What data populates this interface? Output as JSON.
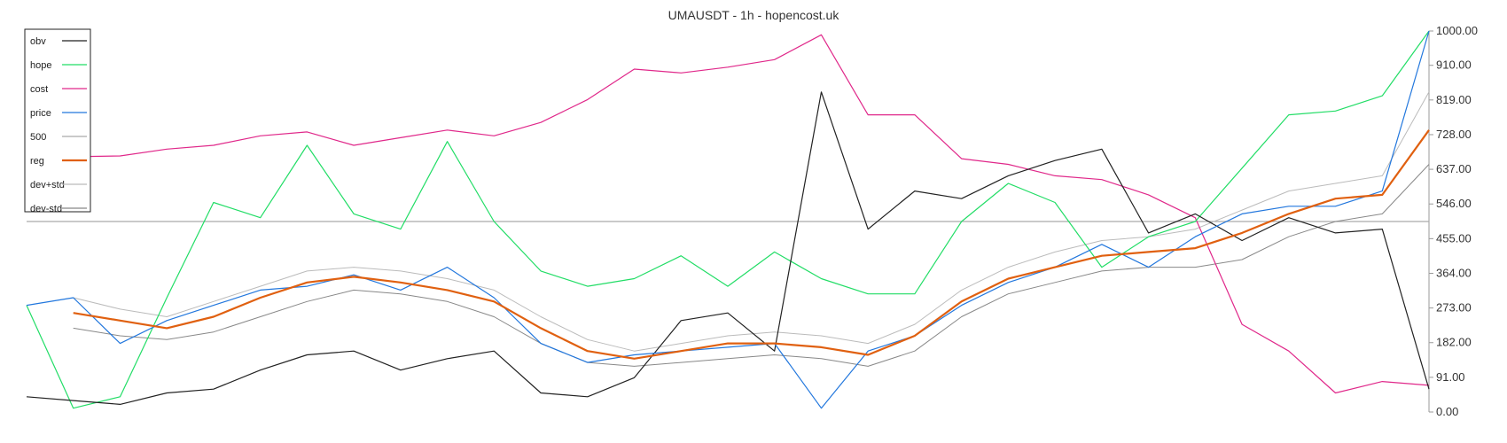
{
  "chart_data": {
    "type": "line",
    "title": "UMAUSDT - 1h - hopencost.uk",
    "xlabel": "",
    "ylabel": "",
    "ylim": [
      0,
      1000
    ],
    "yticks": [
      "0.00",
      "91.00",
      "182.00",
      "273.00",
      "364.00",
      "455.00",
      "546.00",
      "637.00",
      "728.00",
      "819.00",
      "910.00",
      "1000.00"
    ],
    "legend_position": "top-left",
    "reference_line": 500,
    "colors": {
      "obv": "#222222",
      "hope": "#22dd66",
      "cost": "#e0288a",
      "price": "#2277dd",
      "500": "#aaaaaa",
      "reg": "#e06010",
      "dev+std": "#bbbbbb",
      "dev-std": "#888888"
    },
    "legend": [
      "obv",
      "hope",
      "cost",
      "price",
      "500",
      "reg",
      "dev+std",
      "dev-std"
    ],
    "x": [
      0,
      15,
      30,
      45,
      60,
      75,
      90,
      105,
      120,
      135,
      150,
      165,
      180,
      195,
      210,
      225,
      240,
      255,
      270,
      285,
      300,
      315,
      330,
      345,
      360,
      375,
      390,
      405,
      420,
      435,
      450
    ],
    "series": [
      {
        "name": "cost",
        "values": [
          690,
          670,
          672,
          690,
          700,
          725,
          735,
          700,
          720,
          740,
          725,
          760,
          820,
          900,
          890,
          905,
          925,
          990,
          780,
          780,
          665,
          650,
          620,
          610,
          570,
          510,
          230,
          160,
          50,
          80,
          70
        ],
        "style": "line"
      },
      {
        "name": "hope",
        "values": [
          280,
          10,
          40,
          300,
          550,
          510,
          700,
          520,
          480,
          710,
          500,
          370,
          330,
          350,
          410,
          330,
          420,
          350,
          310,
          310,
          500,
          600,
          550,
          380,
          460,
          500,
          640,
          780,
          790,
          830,
          1000
        ],
        "style": "line"
      },
      {
        "name": "obv",
        "values": [
          40,
          30,
          20,
          50,
          60,
          110,
          150,
          160,
          110,
          140,
          160,
          50,
          40,
          90,
          240,
          260,
          160,
          840,
          480,
          580,
          560,
          620,
          660,
          690,
          470,
          520,
          450,
          510,
          470,
          480,
          60
        ],
        "style": "line"
      },
      {
        "name": "price",
        "values": [
          280,
          300,
          180,
          240,
          280,
          320,
          330,
          360,
          320,
          380,
          300,
          180,
          130,
          150,
          160,
          170,
          180,
          10,
          160,
          200,
          280,
          340,
          380,
          440,
          380,
          460,
          520,
          540,
          540,
          580,
          1000
        ],
        "style": "line"
      },
      {
        "name": "reg",
        "values": [
          null,
          260,
          240,
          220,
          250,
          300,
          340,
          355,
          340,
          320,
          290,
          220,
          160,
          140,
          160,
          180,
          180,
          170,
          150,
          200,
          290,
          350,
          380,
          410,
          420,
          430,
          470,
          520,
          560,
          570,
          740
        ],
        "style": "line"
      },
      {
        "name": "dev+std",
        "values": [
          null,
          300,
          270,
          250,
          290,
          330,
          370,
          380,
          370,
          350,
          320,
          250,
          190,
          160,
          180,
          200,
          210,
          200,
          180,
          230,
          320,
          380,
          420,
          450,
          460,
          480,
          530,
          580,
          600,
          620,
          840
        ],
        "style": "line"
      },
      {
        "name": "dev-std",
        "values": [
          null,
          220,
          200,
          190,
          210,
          250,
          290,
          320,
          310,
          290,
          250,
          180,
          130,
          120,
          130,
          140,
          150,
          140,
          120,
          160,
          250,
          310,
          340,
          370,
          380,
          380,
          400,
          460,
          500,
          520,
          650
        ],
        "style": "line"
      }
    ]
  }
}
